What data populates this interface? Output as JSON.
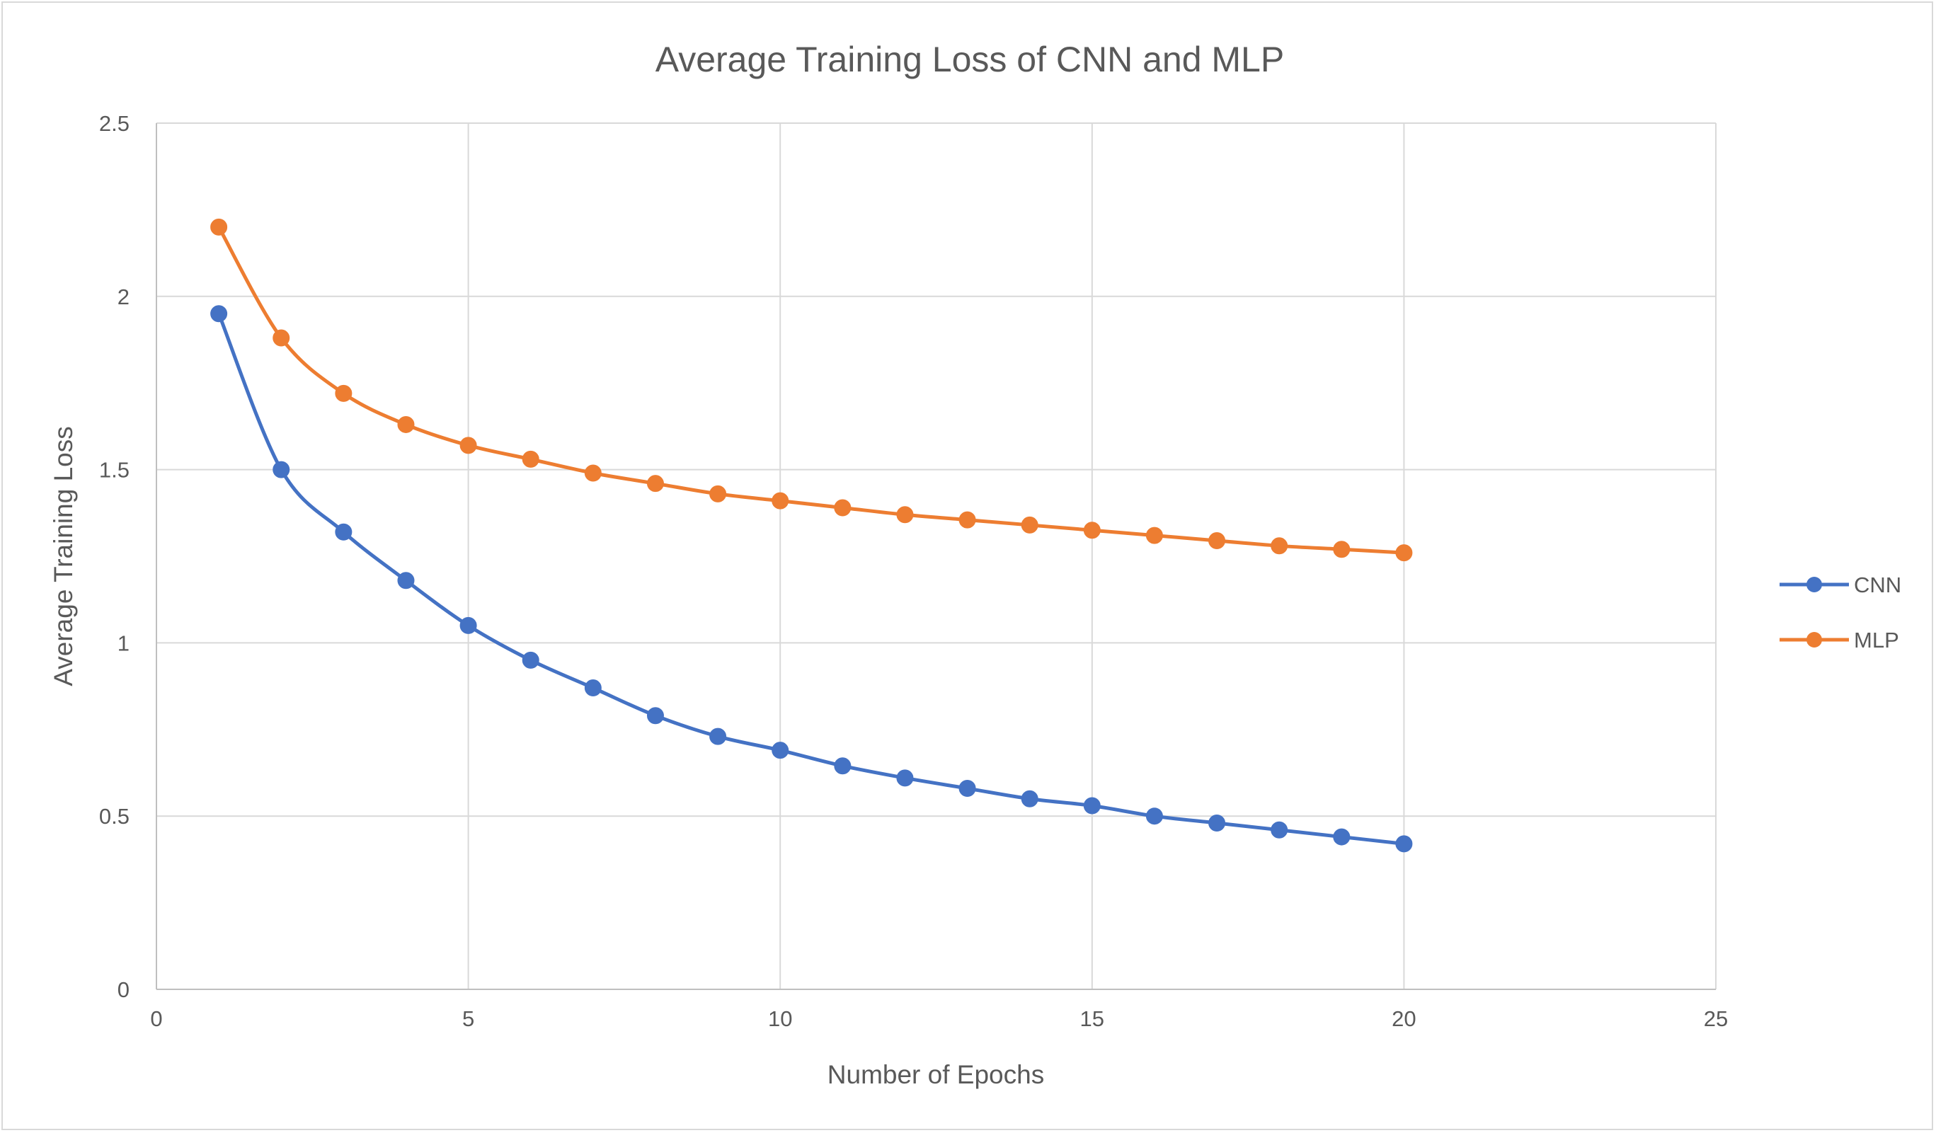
{
  "chart_data": {
    "type": "scatter",
    "title": "Average Training Loss of CNN and MLP",
    "xlabel": "Number of Epochs",
    "ylabel": "Average Training Loss",
    "xlim": [
      0,
      25
    ],
    "ylim": [
      0,
      2.5
    ],
    "xticks": [
      "0",
      "5",
      "10",
      "15",
      "20",
      "25"
    ],
    "yticks": [
      "0",
      "0.5",
      "1",
      "1.5",
      "2",
      "2.5"
    ],
    "grid": true,
    "smooth_lines": true,
    "markers": true,
    "legend_position": "right",
    "x": [
      1,
      2,
      3,
      4,
      5,
      6,
      7,
      8,
      9,
      10,
      11,
      12,
      13,
      14,
      15,
      16,
      17,
      18,
      19,
      20
    ],
    "series": [
      {
        "name": "CNN",
        "color": "#4472c4",
        "values": [
          1.95,
          1.5,
          1.32,
          1.18,
          1.05,
          0.95,
          0.87,
          0.79,
          0.73,
          0.69,
          0.645,
          0.61,
          0.58,
          0.55,
          0.53,
          0.5,
          0.48,
          0.46,
          0.44,
          0.42
        ]
      },
      {
        "name": "MLP",
        "color": "#ed7d31",
        "values": [
          2.2,
          1.88,
          1.72,
          1.63,
          1.57,
          1.53,
          1.49,
          1.46,
          1.43,
          1.41,
          1.39,
          1.37,
          1.355,
          1.34,
          1.325,
          1.31,
          1.295,
          1.28,
          1.27,
          1.26
        ]
      }
    ]
  }
}
